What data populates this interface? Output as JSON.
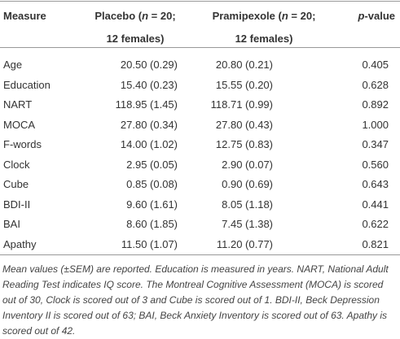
{
  "table": {
    "header": [
      [
        {
          "text": "Measure"
        }
      ],
      [
        {
          "text": "Placebo ("
        },
        {
          "text": "n",
          "italic": true
        },
        {
          "text": " = 20;"
        },
        {
          "text": "12 females)",
          "newline": true
        }
      ],
      [
        {
          "text": "Pramipexole ("
        },
        {
          "text": "n",
          "italic": true
        },
        {
          "text": " = 20;"
        },
        {
          "text": "12 females)",
          "newline": true
        }
      ],
      [
        {
          "text": "p",
          "italic": true
        },
        {
          "text": "-value"
        }
      ]
    ],
    "rows": [
      [
        "Age",
        "20.50 (0.29)",
        "20.80 (0.21)",
        "0.405"
      ],
      [
        "Education",
        "15.40 (0.23)",
        "15.55 (0.20)",
        "0.628"
      ],
      [
        "NART",
        "118.95 (1.45)",
        "118.71 (0.99)",
        "0.892"
      ],
      [
        "MOCA",
        "27.80 (0.34)",
        "27.80 (0.43)",
        "1.000"
      ],
      [
        "F-words",
        "14.00 (1.02)",
        "12.75 (0.83)",
        "0.347"
      ],
      [
        "Clock",
        "2.95 (0.05)",
        "2.90 (0.07)",
        "0.560"
      ],
      [
        "Cube",
        "0.85 (0.08)",
        "0.90 (0.69)",
        "0.643"
      ],
      [
        "BDI-II",
        "9.60 (1.61)",
        "8.05 (1.18)",
        "0.441"
      ],
      [
        "BAI",
        "8.60 (1.85)",
        "7.45 (1.38)",
        "0.622"
      ],
      [
        "Apathy",
        "11.50 (1.07)",
        "11.20 (0.77)",
        "0.821"
      ]
    ],
    "note": "Mean values (±SEM) are reported. Education is measured in years. NART, National Adult Reading Test indicates IQ score. The Montreal Cognitive Assessment (MOCA) is scored out of 30, Clock is scored out of 3 and Cube is scored out of 1. BDI-II, Beck Depression Inventory II is scored out of 63; BAI, Beck Anxiety Inventory is scored out of 63. Apathy is scored out of 42."
  }
}
